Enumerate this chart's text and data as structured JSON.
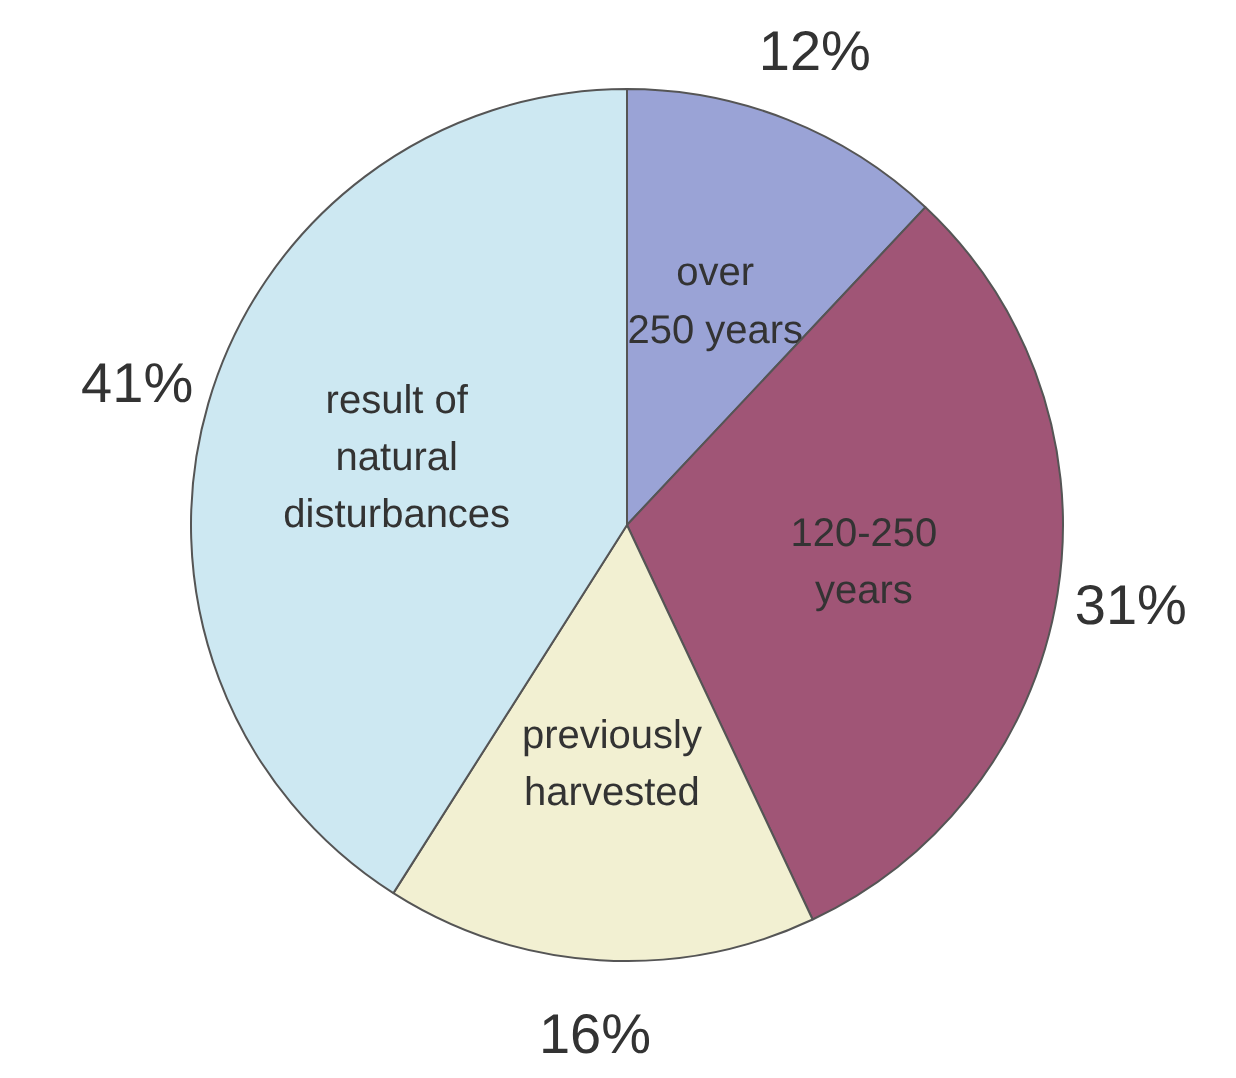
{
  "chart_data": {
    "type": "pie",
    "categories": [
      "over\n250 years",
      "120-250\nyears",
      "previously\nharvested",
      "result of\nnatural\ndisturbances"
    ],
    "values": [
      12,
      31,
      16,
      41
    ],
    "colors": [
      "#9aa3d6",
      "#a05576",
      "#f2f0d2",
      "#cde8f2"
    ],
    "value_labels": [
      "12%",
      "31%",
      "16%",
      "41%"
    ]
  }
}
